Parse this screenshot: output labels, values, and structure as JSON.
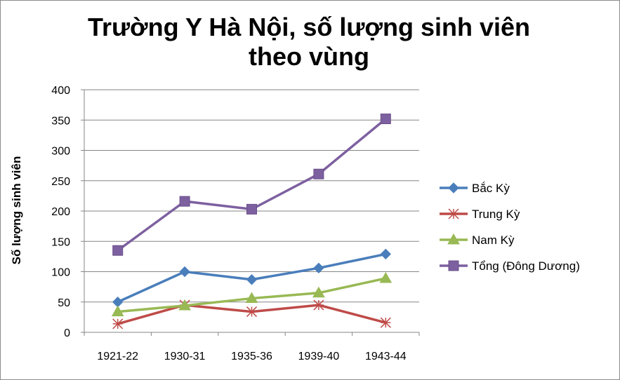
{
  "chart_data": {
    "type": "line",
    "title": "Trường Y Hà Nội, số lượng sinh viên theo vùng",
    "title_lines": [
      "Trường Y Hà Nội, số lượng sinh viên",
      "theo vùng"
    ],
    "xlabel": "",
    "ylabel": "Số lượng sinh viên",
    "categories": [
      "1921-22",
      "1930-31",
      "1935-36",
      "1939-40",
      "1943-44"
    ],
    "ylim": [
      0,
      400
    ],
    "yticks": [
      0,
      50,
      100,
      150,
      200,
      250,
      300,
      350,
      400
    ],
    "grid": true,
    "legend_position": "right",
    "series": [
      {
        "name": "Bắc Kỳ",
        "values": [
          50,
          100,
          87,
          106,
          129
        ],
        "color": "#4a7ebb",
        "marker": "diamond"
      },
      {
        "name": "Trung Kỳ",
        "values": [
          14,
          45,
          34,
          45,
          16
        ],
        "color": "#be4b48",
        "marker": "star"
      },
      {
        "name": "Nam Kỳ",
        "values": [
          34,
          44,
          56,
          65,
          89
        ],
        "color": "#98b954",
        "marker": "triangle"
      },
      {
        "name": "Tổng (Đông Dương)",
        "values": [
          135,
          216,
          203,
          261,
          352
        ],
        "color": "#7d60a0",
        "marker": "square"
      }
    ]
  }
}
